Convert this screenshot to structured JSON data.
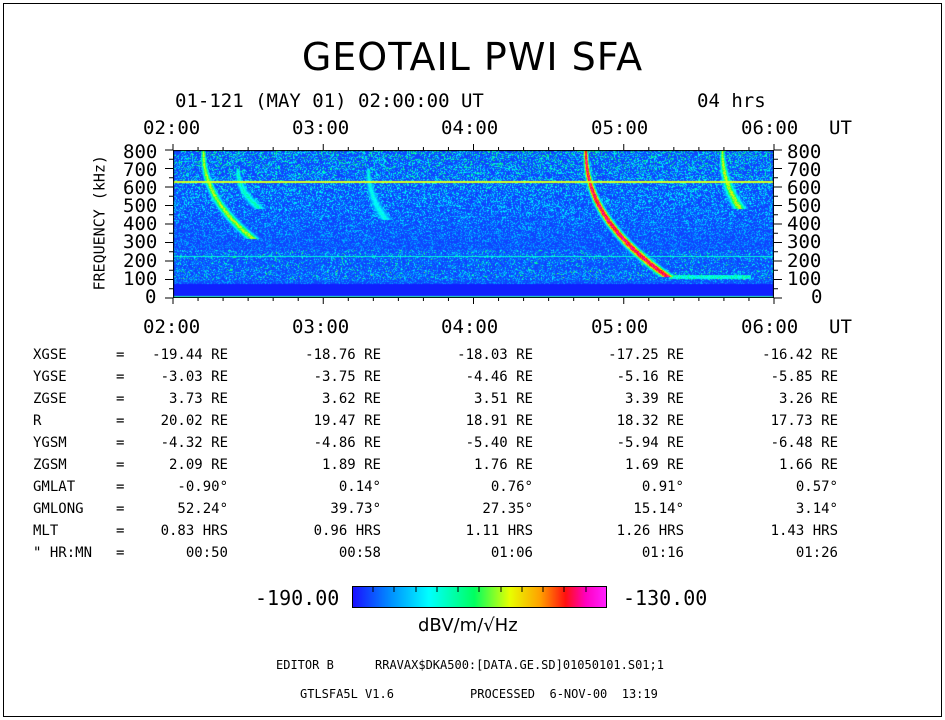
{
  "header": {
    "title": "GEOTAIL PWI SFA",
    "datetime": "01-121 (MAY 01) 02:00:00 UT",
    "span": "04 hrs"
  },
  "chart_data": {
    "type": "heatmap",
    "title": "GEOTAIL PWI SFA",
    "xlabel": "UT",
    "ylabel": "FREQUENCY (kHz)",
    "x_ticks": [
      "02:00",
      "03:00",
      "04:00",
      "05:00",
      "06:00"
    ],
    "x_unit": "UT",
    "y_ticks": [
      "800",
      "700",
      "600",
      "500",
      "400",
      "300",
      "200",
      "100",
      "0"
    ],
    "y_range": [
      0,
      800
    ],
    "x_range_hours": [
      2,
      6
    ],
    "colorbar": {
      "min": "-190.00",
      "max": "-130.00",
      "unit": "dBV/m/√Hz",
      "stops": [
        "#1a10ff",
        "#0090ff",
        "#00ffff",
        "#00ff60",
        "#e8ff00",
        "#ffa000",
        "#ff1010",
        "#ff00c0",
        "#ff20ff"
      ]
    },
    "background_color": "#1030ff",
    "hline_yellow_khz": 630,
    "hline_cyan_khz": 225,
    "bursts": [
      {
        "start_h": 2.2,
        "top_khz": 800,
        "bottom_khz": 320,
        "drift_h": 0.33,
        "intensity": 0.55
      },
      {
        "start_h": 2.43,
        "top_khz": 700,
        "bottom_khz": 480,
        "drift_h": 0.15,
        "intensity": 0.35
      },
      {
        "start_h": 3.3,
        "top_khz": 700,
        "bottom_khz": 420,
        "drift_h": 0.12,
        "intensity": 0.3
      },
      {
        "start_h": 4.75,
        "top_khz": 800,
        "bottom_khz": 110,
        "drift_h": 0.55,
        "intensity": 0.95
      },
      {
        "start_h": 5.66,
        "top_khz": 800,
        "bottom_khz": 480,
        "drift_h": 0.12,
        "intensity": 0.55
      }
    ]
  },
  "ephemeris": {
    "rows": [
      {
        "label": "XGSE",
        "eq": "=",
        "values": [
          "-19.44 RE",
          "-18.76 RE",
          "-18.03 RE",
          "-17.25 RE",
          "-16.42 RE"
        ]
      },
      {
        "label": "YGSE",
        "eq": "=",
        "values": [
          "-3.03 RE",
          "-3.75 RE",
          "-4.46 RE",
          "-5.16 RE",
          "-5.85 RE"
        ]
      },
      {
        "label": "ZGSE",
        "eq": "=",
        "values": [
          "3.73 RE",
          "3.62 RE",
          "3.51 RE",
          "3.39 RE",
          "3.26 RE"
        ]
      },
      {
        "label": "R",
        "eq": "=",
        "values": [
          "20.02 RE",
          "19.47 RE",
          "18.91 RE",
          "18.32 RE",
          "17.73 RE"
        ]
      },
      {
        "label": "YGSM",
        "eq": "=",
        "values": [
          "-4.32 RE",
          "-4.86 RE",
          "-5.40 RE",
          "-5.94 RE",
          "-6.48 RE"
        ]
      },
      {
        "label": "ZGSM",
        "eq": "=",
        "values": [
          "2.09 RE",
          "1.89 RE",
          "1.76 RE",
          "1.69 RE",
          "1.66 RE"
        ]
      },
      {
        "label": "GMLAT",
        "eq": "=",
        "values": [
          "-0.90°",
          "0.14°",
          "0.76°",
          "0.91°",
          "0.57°"
        ]
      },
      {
        "label": "GMLONG",
        "eq": "=",
        "values": [
          "52.24°",
          "39.73°",
          "27.35°",
          "15.14°",
          "3.14°"
        ]
      },
      {
        "label": "MLT",
        "eq": "=",
        "values": [
          "0.83 HRS",
          "0.96 HRS",
          "1.11 HRS",
          "1.26 HRS",
          "1.43 HRS"
        ]
      },
      {
        "label": "\" HR:MN",
        "eq": "=",
        "values": [
          "00:50",
          "00:58",
          "01:06",
          "01:16",
          "01:26"
        ]
      }
    ]
  },
  "footer": {
    "editor": "EDITOR B",
    "path": "RRAVAX$DKA500:[DATA.GE.SD]01050101.S01;1",
    "program": "GTLSFA5L V1.6",
    "processed": "PROCESSED  6-NOV-00  13:19"
  }
}
